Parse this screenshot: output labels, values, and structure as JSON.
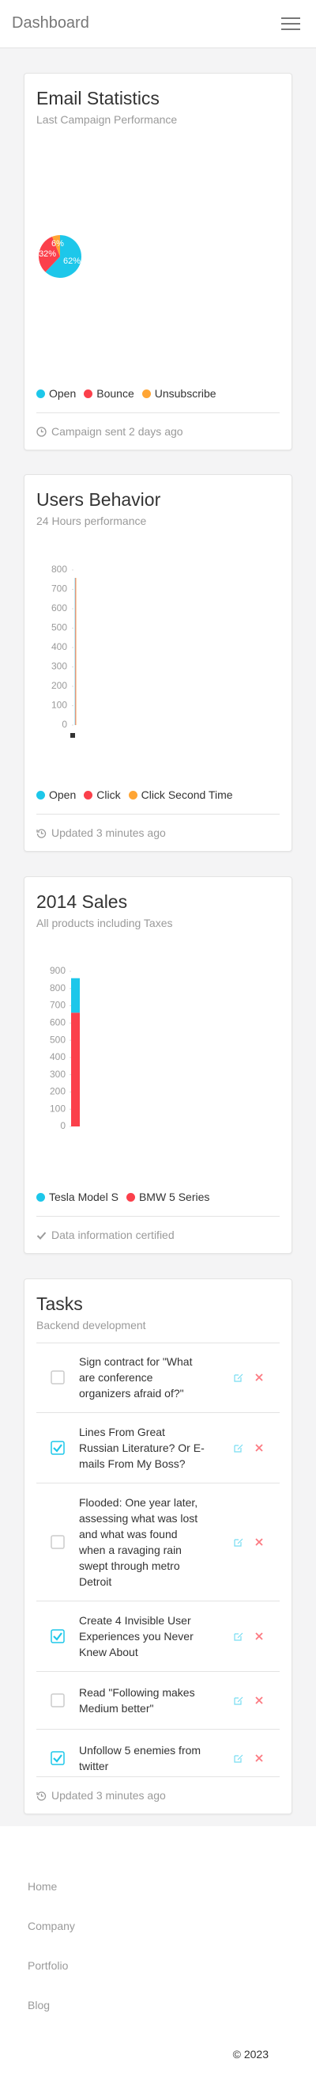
{
  "header": {
    "title": "Dashboard"
  },
  "email_card": {
    "title": "Email Statistics",
    "subtitle": "Last Campaign Performance",
    "footer": "Campaign sent 2 days ago",
    "chart_data": {
      "type": "pie",
      "categories": [
        "Open",
        "Bounce",
        "Unsubscribe"
      ],
      "values": [
        62,
        32,
        6
      ],
      "value_labels": [
        "62%",
        "32%",
        "6%"
      ],
      "colors": [
        "#1dc7ea",
        "#fb404b",
        "#ffa534"
      ]
    }
  },
  "behavior_card": {
    "title": "Users Behavior",
    "subtitle": "24 Hours performance",
    "footer": "Updated 3 minutes ago",
    "chart_data": {
      "type": "line",
      "series": [
        {
          "name": "Open",
          "color": "#1dc7ea"
        },
        {
          "name": "Click",
          "color": "#fb404b"
        },
        {
          "name": "Click Second Time",
          "color": "#ffa534"
        }
      ],
      "ylim": [
        0,
        800
      ],
      "yticks": [
        0,
        100,
        200,
        300,
        400,
        500,
        600,
        700,
        800
      ]
    }
  },
  "sales_card": {
    "title": "2014 Sales",
    "subtitle": "All products including Taxes",
    "footer": "Data information certified",
    "chart_data": {
      "type": "bar",
      "stacked": true,
      "categories": [
        null
      ],
      "series": [
        {
          "name": "Tesla Model S",
          "color": "#1dc7ea",
          "values": [
            200
          ]
        },
        {
          "name": "BMW 5 Series",
          "color": "#fb404b",
          "values": [
            660
          ]
        }
      ],
      "ylim": [
        0,
        900
      ],
      "yticks": [
        0,
        100,
        200,
        300,
        400,
        500,
        600,
        700,
        800,
        900
      ]
    }
  },
  "tasks_card": {
    "title": "Tasks",
    "subtitle": "Backend development",
    "footer": "Updated 3 minutes ago",
    "tasks": [
      {
        "text": "Sign contract for \"What are conference organizers afraid of?\"",
        "done": false
      },
      {
        "text": "Lines From Great Russian Literature? Or E-mails From My Boss?",
        "done": true
      },
      {
        "text": "Flooded: One year later, assessing what was lost and what was found when a ravaging rain swept through metro Detroit",
        "done": false
      },
      {
        "text": "Create 4 Invisible User Experiences you Never Knew About",
        "done": true
      },
      {
        "text": "Read \"Following makes Medium better\"",
        "done": false
      },
      {
        "text": "Unfollow 5 enemies from twitter",
        "done": true
      }
    ]
  },
  "footer": {
    "links": [
      "Home",
      "Company",
      "Portfolio",
      "Blog"
    ],
    "copyright": "© 2023"
  }
}
